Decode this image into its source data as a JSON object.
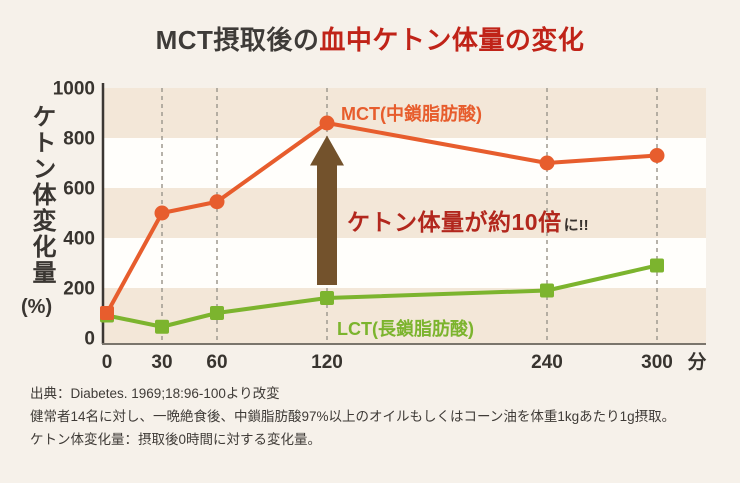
{
  "title": {
    "prefix": "MCT摂取後の",
    "highlight": "血中ケトン体量の変化"
  },
  "y_axis_label": {
    "text": "ケトン体変化量",
    "unit": "(%)"
  },
  "chart_data": {
    "type": "line",
    "x": [
      0,
      30,
      60,
      120,
      240,
      300
    ],
    "x_tick_labels": [
      "0",
      "30",
      "60",
      "120",
      "240",
      "300"
    ],
    "x_unit": "分",
    "y_ticks": [
      0,
      200,
      400,
      600,
      800,
      1000
    ],
    "xlim": [
      0,
      300
    ],
    "ylim": [
      0,
      1000
    ],
    "x_gridlines": [
      30,
      60,
      120,
      240,
      300
    ],
    "grid_style": "vertical-dashed",
    "background_bands": {
      "interval": 200,
      "colors": [
        "#f3e7d8",
        "#fffefb"
      ]
    },
    "series": [
      {
        "name": "LCT(長鎖脂肪酸)",
        "color": "#7cb42e",
        "values": [
          90,
          45,
          100,
          160,
          190,
          290
        ],
        "markers": [
          "square",
          "square",
          "square",
          "square",
          "square",
          "square"
        ]
      },
      {
        "name": "MCT(中鎖脂肪酸)",
        "color": "#e75d2d",
        "values": [
          100,
          500,
          545,
          860,
          700,
          730
        ],
        "markers": [
          "square",
          "circle",
          "circle",
          "circle",
          "circle",
          "circle"
        ]
      }
    ],
    "annotation": {
      "text_main": "ケトン体量が約10倍",
      "text_suffix": "に!!",
      "color_main": "#b2271d",
      "color_suffix": "#38322e",
      "arrow": {
        "at_x": 120,
        "tip_value": 810,
        "tail_value": 212,
        "color": "#73522c"
      }
    },
    "legend_position": "inline-labels",
    "title": "MCT摂取後の血中ケトン体量の変化"
  },
  "footnotes": [
    "出典：Diabetes. 1969;18:96-100より改変",
    "健常者14名に対し、一晩絶食後、中鎖脂肪酸97%以上のオイルもしくはコーン油を体重1kgあたり1g摂取。",
    "ケトン体変化量：摂取後0時間に対する変化量。"
  ],
  "colors": {
    "page_background": "#f6f1ea",
    "band_beige": "#f3e7d8",
    "band_white": "#fffefb",
    "title_dark": "#3e3b38",
    "title_red": "#c02318",
    "gridline": "#a59f95",
    "y_axis_line": "#3b3733",
    "x_axis_line": "#7a756c",
    "tick_label": "#38342f"
  }
}
